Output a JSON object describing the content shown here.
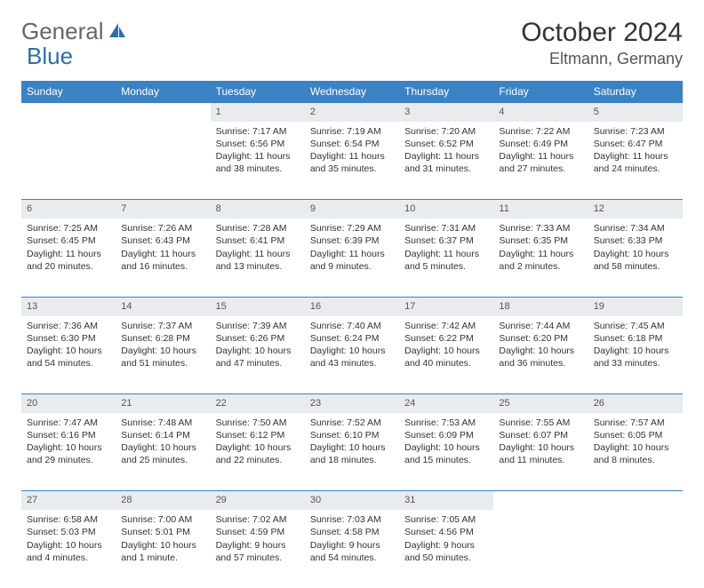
{
  "logo": {
    "text1": "General",
    "text2": "Blue",
    "color_gray": "#666666",
    "color_blue": "#2f6fa8"
  },
  "title": "October 2024",
  "location": "Eltmann, Germany",
  "colors": {
    "header_bg": "#3b82c4",
    "header_text": "#ffffff",
    "daynum_bg": "#e8ecef",
    "border": "#3b82c4",
    "text": "#333333"
  },
  "weekdays": [
    "Sunday",
    "Monday",
    "Tuesday",
    "Wednesday",
    "Thursday",
    "Friday",
    "Saturday"
  ],
  "weeks": [
    [
      null,
      null,
      {
        "num": "1",
        "sunrise": "Sunrise: 7:17 AM",
        "sunset": "Sunset: 6:56 PM",
        "day1": "Daylight: 11 hours",
        "day2": "and 38 minutes."
      },
      {
        "num": "2",
        "sunrise": "Sunrise: 7:19 AM",
        "sunset": "Sunset: 6:54 PM",
        "day1": "Daylight: 11 hours",
        "day2": "and 35 minutes."
      },
      {
        "num": "3",
        "sunrise": "Sunrise: 7:20 AM",
        "sunset": "Sunset: 6:52 PM",
        "day1": "Daylight: 11 hours",
        "day2": "and 31 minutes."
      },
      {
        "num": "4",
        "sunrise": "Sunrise: 7:22 AM",
        "sunset": "Sunset: 6:49 PM",
        "day1": "Daylight: 11 hours",
        "day2": "and 27 minutes."
      },
      {
        "num": "5",
        "sunrise": "Sunrise: 7:23 AM",
        "sunset": "Sunset: 6:47 PM",
        "day1": "Daylight: 11 hours",
        "day2": "and 24 minutes."
      }
    ],
    [
      {
        "num": "6",
        "sunrise": "Sunrise: 7:25 AM",
        "sunset": "Sunset: 6:45 PM",
        "day1": "Daylight: 11 hours",
        "day2": "and 20 minutes."
      },
      {
        "num": "7",
        "sunrise": "Sunrise: 7:26 AM",
        "sunset": "Sunset: 6:43 PM",
        "day1": "Daylight: 11 hours",
        "day2": "and 16 minutes."
      },
      {
        "num": "8",
        "sunrise": "Sunrise: 7:28 AM",
        "sunset": "Sunset: 6:41 PM",
        "day1": "Daylight: 11 hours",
        "day2": "and 13 minutes."
      },
      {
        "num": "9",
        "sunrise": "Sunrise: 7:29 AM",
        "sunset": "Sunset: 6:39 PM",
        "day1": "Daylight: 11 hours",
        "day2": "and 9 minutes."
      },
      {
        "num": "10",
        "sunrise": "Sunrise: 7:31 AM",
        "sunset": "Sunset: 6:37 PM",
        "day1": "Daylight: 11 hours",
        "day2": "and 5 minutes."
      },
      {
        "num": "11",
        "sunrise": "Sunrise: 7:33 AM",
        "sunset": "Sunset: 6:35 PM",
        "day1": "Daylight: 11 hours",
        "day2": "and 2 minutes."
      },
      {
        "num": "12",
        "sunrise": "Sunrise: 7:34 AM",
        "sunset": "Sunset: 6:33 PM",
        "day1": "Daylight: 10 hours",
        "day2": "and 58 minutes."
      }
    ],
    [
      {
        "num": "13",
        "sunrise": "Sunrise: 7:36 AM",
        "sunset": "Sunset: 6:30 PM",
        "day1": "Daylight: 10 hours",
        "day2": "and 54 minutes."
      },
      {
        "num": "14",
        "sunrise": "Sunrise: 7:37 AM",
        "sunset": "Sunset: 6:28 PM",
        "day1": "Daylight: 10 hours",
        "day2": "and 51 minutes."
      },
      {
        "num": "15",
        "sunrise": "Sunrise: 7:39 AM",
        "sunset": "Sunset: 6:26 PM",
        "day1": "Daylight: 10 hours",
        "day2": "and 47 minutes."
      },
      {
        "num": "16",
        "sunrise": "Sunrise: 7:40 AM",
        "sunset": "Sunset: 6:24 PM",
        "day1": "Daylight: 10 hours",
        "day2": "and 43 minutes."
      },
      {
        "num": "17",
        "sunrise": "Sunrise: 7:42 AM",
        "sunset": "Sunset: 6:22 PM",
        "day1": "Daylight: 10 hours",
        "day2": "and 40 minutes."
      },
      {
        "num": "18",
        "sunrise": "Sunrise: 7:44 AM",
        "sunset": "Sunset: 6:20 PM",
        "day1": "Daylight: 10 hours",
        "day2": "and 36 minutes."
      },
      {
        "num": "19",
        "sunrise": "Sunrise: 7:45 AM",
        "sunset": "Sunset: 6:18 PM",
        "day1": "Daylight: 10 hours",
        "day2": "and 33 minutes."
      }
    ],
    [
      {
        "num": "20",
        "sunrise": "Sunrise: 7:47 AM",
        "sunset": "Sunset: 6:16 PM",
        "day1": "Daylight: 10 hours",
        "day2": "and 29 minutes."
      },
      {
        "num": "21",
        "sunrise": "Sunrise: 7:48 AM",
        "sunset": "Sunset: 6:14 PM",
        "day1": "Daylight: 10 hours",
        "day2": "and 25 minutes."
      },
      {
        "num": "22",
        "sunrise": "Sunrise: 7:50 AM",
        "sunset": "Sunset: 6:12 PM",
        "day1": "Daylight: 10 hours",
        "day2": "and 22 minutes."
      },
      {
        "num": "23",
        "sunrise": "Sunrise: 7:52 AM",
        "sunset": "Sunset: 6:10 PM",
        "day1": "Daylight: 10 hours",
        "day2": "and 18 minutes."
      },
      {
        "num": "24",
        "sunrise": "Sunrise: 7:53 AM",
        "sunset": "Sunset: 6:09 PM",
        "day1": "Daylight: 10 hours",
        "day2": "and 15 minutes."
      },
      {
        "num": "25",
        "sunrise": "Sunrise: 7:55 AM",
        "sunset": "Sunset: 6:07 PM",
        "day1": "Daylight: 10 hours",
        "day2": "and 11 minutes."
      },
      {
        "num": "26",
        "sunrise": "Sunrise: 7:57 AM",
        "sunset": "Sunset: 6:05 PM",
        "day1": "Daylight: 10 hours",
        "day2": "and 8 minutes."
      }
    ],
    [
      {
        "num": "27",
        "sunrise": "Sunrise: 6:58 AM",
        "sunset": "Sunset: 5:03 PM",
        "day1": "Daylight: 10 hours",
        "day2": "and 4 minutes."
      },
      {
        "num": "28",
        "sunrise": "Sunrise: 7:00 AM",
        "sunset": "Sunset: 5:01 PM",
        "day1": "Daylight: 10 hours",
        "day2": "and 1 minute."
      },
      {
        "num": "29",
        "sunrise": "Sunrise: 7:02 AM",
        "sunset": "Sunset: 4:59 PM",
        "day1": "Daylight: 9 hours",
        "day2": "and 57 minutes."
      },
      {
        "num": "30",
        "sunrise": "Sunrise: 7:03 AM",
        "sunset": "Sunset: 4:58 PM",
        "day1": "Daylight: 9 hours",
        "day2": "and 54 minutes."
      },
      {
        "num": "31",
        "sunrise": "Sunrise: 7:05 AM",
        "sunset": "Sunset: 4:56 PM",
        "day1": "Daylight: 9 hours",
        "day2": "and 50 minutes."
      },
      null,
      null
    ]
  ]
}
